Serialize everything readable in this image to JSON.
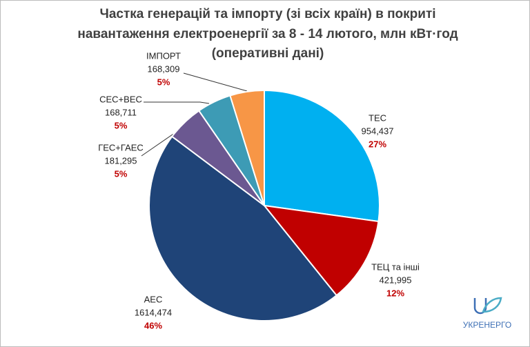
{
  "chart_data": {
    "type": "pie",
    "title": [
      "Частка генерацій та імпорту (зі всіх країн) в покриті",
      "навантаження електроенергії за 8 - 14 лютого, млн кВт·год",
      "(оперативні дані)"
    ],
    "categories": [
      "ТЕС",
      "ТЕЦ та інші",
      "АЕС",
      "ГЕС+ГАЕС",
      "СЕС+ВЕС",
      "ІМПОРТ"
    ],
    "values": [
      954.437,
      421.995,
      1614.474,
      181.295,
      168.711,
      168.309
    ],
    "value_labels": [
      "954,437",
      "421,995",
      "1614,474",
      "181,295",
      "168,711",
      "168,309"
    ],
    "percent_labels": [
      "27%",
      "12%",
      "46%",
      "5%",
      "5%",
      "5%"
    ],
    "colors": [
      "#00b0f0",
      "#c00000",
      "#1f4478",
      "#6b5891",
      "#3d9bb5",
      "#f79646"
    ],
    "logo": "УКРЕНЕРГО"
  }
}
